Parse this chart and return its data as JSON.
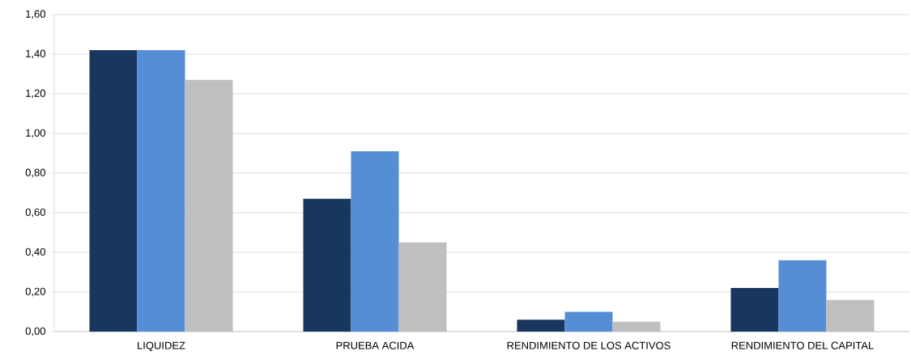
{
  "chart_data": {
    "type": "bar",
    "categories": [
      "LIQUIDEZ",
      "PRUEBA ACIDA",
      "RENDIMIENTO  DE LOS ACTIVOS",
      "RENDIMIENTO  DEL CAPITAL"
    ],
    "series": [
      {
        "color": "#17375e",
        "values": [
          1.42,
          0.67,
          0.06,
          0.22
        ]
      },
      {
        "color": "#558ed5",
        "values": [
          1.42,
          0.91,
          0.1,
          0.36
        ]
      },
      {
        "color": "#bfbfbf",
        "values": [
          1.27,
          0.45,
          0.05,
          0.16
        ]
      }
    ],
    "ylim": [
      0,
      1.6
    ],
    "yticks": [
      {
        "value": 0,
        "label": "0,00"
      },
      {
        "value": 0.2,
        "label": "0,20"
      },
      {
        "value": 0.4,
        "label": "0,40"
      },
      {
        "value": 0.6,
        "label": "0,60"
      },
      {
        "value": 0.8,
        "label": "0,80"
      },
      {
        "value": 1.0,
        "label": "1,00"
      },
      {
        "value": 1.2,
        "label": "1,20"
      },
      {
        "value": 1.4,
        "label": "1,40"
      },
      {
        "value": 1.6,
        "label": "1,60"
      }
    ],
    "grid": "y"
  }
}
